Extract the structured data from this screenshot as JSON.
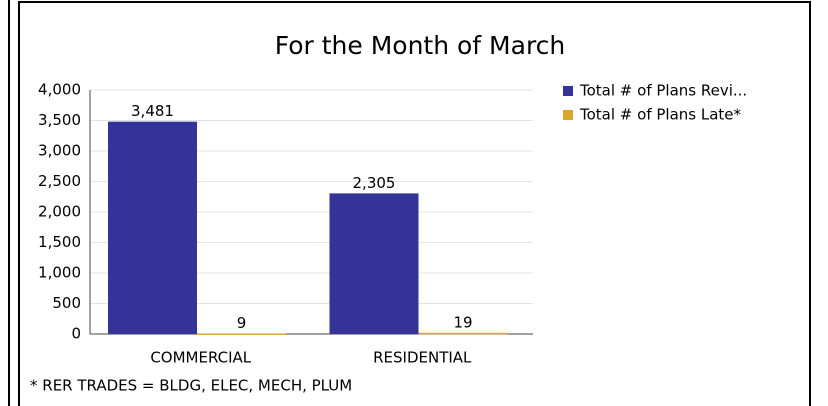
{
  "chart_data": {
    "type": "bar",
    "title": "For the Month of March",
    "categories": [
      "COMMERCIAL",
      "RESIDENTIAL"
    ],
    "series": [
      {
        "name": "Total # of Plans Revi...",
        "color": "#333399",
        "values": [
          3481,
          2305
        ],
        "value_labels": [
          "3,481",
          "2,305"
        ]
      },
      {
        "name": "Total # of Plans Late*",
        "color": "#d9a62e",
        "values": [
          9,
          19
        ]
      }
    ],
    "ylim": [
      0,
      4000
    ],
    "yticks": [
      0,
      500,
      {
        "value": 1000,
        "label": "1,000"
      },
      {
        "value": 1500,
        "label": "1,500"
      },
      {
        "value": 2000,
        "label": "2,000"
      },
      {
        "value": 2500,
        "label": "2,500"
      },
      {
        "value": 3000,
        "label": "3,000"
      },
      {
        "value": 3500,
        "label": "3,500"
      },
      {
        "value": 4000,
        "label": "4,000"
      }
    ],
    "grid": true,
    "legend": "right",
    "footnote": "* RER TRADES = BLDG, ELEC, MECH, PLUM"
  }
}
